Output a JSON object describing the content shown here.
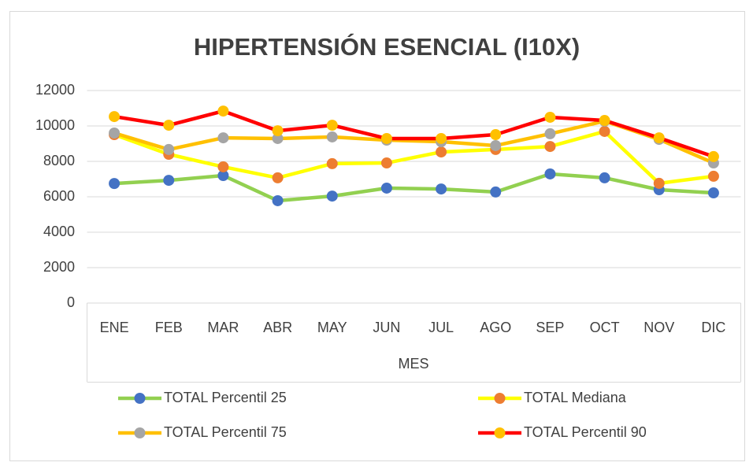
{
  "chart_data": {
    "type": "line",
    "title": "HIPERTENSIÓN ESENCIAL (I10X)",
    "x_label": "MES",
    "categories": [
      "ENE",
      "FEB",
      "MAR",
      "ABR",
      "MAY",
      "JUN",
      "JUL",
      "AGO",
      "SEP",
      "OCT",
      "NOV",
      "DIC"
    ],
    "series": [
      {
        "name": "TOTAL Percentil 25",
        "color": "#92d050",
        "marker_color": "#4472c4",
        "values": [
          6750,
          6930,
          7200,
          5780,
          6040,
          6490,
          6440,
          6270,
          7290,
          7070,
          6400,
          6220
        ]
      },
      {
        "name": "TOTAL Mediana",
        "color": "#ffff00",
        "marker_color": "#ed7d31",
        "values": [
          9510,
          8400,
          7690,
          7070,
          7870,
          7910,
          8530,
          8670,
          8840,
          9690,
          6760,
          7160
        ]
      },
      {
        "name": "TOTAL Percentil 75",
        "color": "#ffc000",
        "marker_color": "#a5a5a5",
        "values": [
          9600,
          8670,
          9330,
          9290,
          9380,
          9200,
          9110,
          8890,
          9560,
          10270,
          9240,
          7910
        ]
      },
      {
        "name": "TOTAL Percentil 90",
        "color": "#ff0000",
        "marker_color": "#ffc000",
        "values": [
          10530,
          10040,
          10840,
          9730,
          10040,
          9290,
          9290,
          9510,
          10490,
          10310,
          9330,
          8270
        ]
      }
    ],
    "ylim": [
      0,
      12000
    ],
    "yticks": [
      0,
      2000,
      4000,
      6000,
      8000,
      10000,
      12000
    ],
    "grid": true
  }
}
